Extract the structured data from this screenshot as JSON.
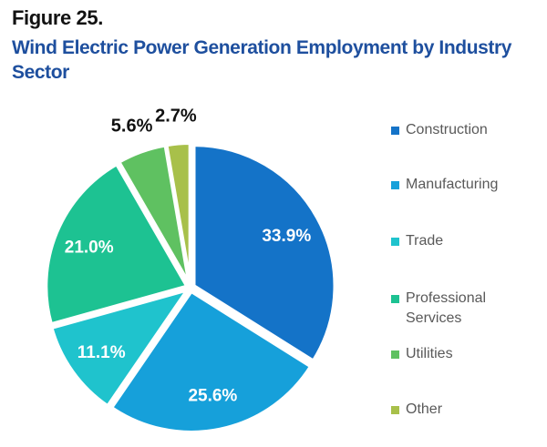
{
  "header": {
    "figure_label": "Figure 25.",
    "title": "Wind Electric Power Generation Employment by Industry Sector"
  },
  "accent_colors": {
    "title_blue": "#1E4F9E",
    "legend_text_gray": "#595959",
    "inside_label_white": "#ffffff",
    "outside_label_black": "#111111"
  },
  "legend": {
    "items": [
      {
        "label": "Construction",
        "color": "#1473C8",
        "swatch_icon": "square-swatch"
      },
      {
        "label": "Manufacturing",
        "color": "#16A0DA",
        "swatch_icon": "square-swatch"
      },
      {
        "label": "Trade",
        "color": "#1FC3CD",
        "swatch_icon": "square-swatch"
      },
      {
        "label": "Professional Services",
        "color": "#1DC292",
        "swatch_icon": "square-swatch"
      },
      {
        "label": "Utilities",
        "color": "#5FC161",
        "swatch_icon": "square-swatch"
      },
      {
        "label": "Other",
        "color": "#A8C04A",
        "swatch_icon": "square-swatch"
      }
    ]
  },
  "chart_data": {
    "type": "pie",
    "title": "Wind Electric Power Generation Employment by Industry Sector",
    "figure_label": "Figure 25.",
    "labels": [
      "Construction",
      "Manufacturing",
      "Trade",
      "Professional Services",
      "Utilities",
      "Other"
    ],
    "values": [
      33.9,
      25.6,
      11.1,
      21.0,
      5.6,
      2.7
    ],
    "value_labels": [
      "33.9%",
      "25.6%",
      "11.1%",
      "21.0%",
      "5.6%",
      "2.7%"
    ],
    "colors": [
      "#1473C8",
      "#16A0DA",
      "#1FC3CD",
      "#1DC292",
      "#5FC161",
      "#A8C04A"
    ],
    "label_placement": [
      "inside",
      "inside",
      "inside",
      "inside",
      "outside",
      "outside"
    ],
    "start_angle_deg": 0,
    "direction": "clockwise",
    "legend_position": "right",
    "slice_gap_color": "#ffffff"
  }
}
